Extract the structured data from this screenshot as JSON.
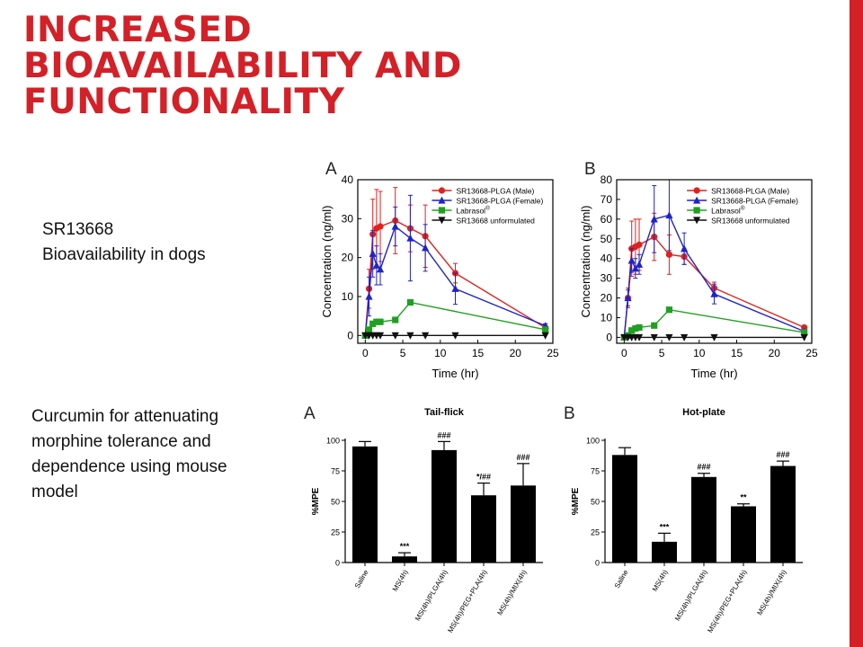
{
  "slide": {
    "title_lines": [
      "INCREASED",
      "BIOAVAILABILITY AND",
      "FUNCTIONALITY"
    ],
    "accent_color": "#d42027",
    "caption_sr": [
      "SR13668",
      "Bioavailability  in dogs"
    ],
    "caption_curcumin": [
      "Curcumin for attenuating",
      "morphine tolerance and",
      "dependence using mouse",
      "model"
    ]
  },
  "chart_data": [
    {
      "type": "line",
      "panel": "A",
      "xlabel": "Time (hr)",
      "ylabel": "Concentration (ng/ml)",
      "xlim": [
        -1,
        25
      ],
      "ylim": [
        -2,
        40
      ],
      "xticks": [
        0,
        5,
        10,
        15,
        20,
        25
      ],
      "yticks": [
        0,
        10,
        20,
        30,
        40
      ],
      "legend_position": "top-right",
      "series": [
        {
          "name": "SR13668-PLGA (Male)",
          "color": "#e0211d",
          "marker": "circle",
          "x": [
            0,
            0.5,
            1,
            1.5,
            2,
            4,
            6,
            8,
            12,
            24
          ],
          "y": [
            0,
            12,
            26,
            27.5,
            28,
            29.5,
            27.5,
            25.5,
            16,
            2
          ],
          "err": [
            0,
            5,
            9,
            10,
            9,
            8.5,
            6,
            8,
            2.5,
            1
          ]
        },
        {
          "name": "SR13668-PLGA (Female)",
          "color": "#1f24c8",
          "marker": "triangle-up",
          "x": [
            0,
            0.5,
            1,
            1.5,
            2,
            4,
            6,
            8,
            12,
            24
          ],
          "y": [
            0,
            10,
            21,
            18,
            17,
            28,
            25,
            22.5,
            12,
            2.5
          ],
          "err": [
            0,
            5,
            6,
            5,
            4,
            5,
            11,
            6,
            4,
            0.5
          ]
        },
        {
          "name": "Labrasol",
          "name_sup": "®",
          "color": "#20a020",
          "marker": "square",
          "x": [
            0,
            0.5,
            1,
            1.5,
            2,
            4,
            6,
            24
          ],
          "y": [
            0,
            1.5,
            3,
            3.5,
            3.5,
            4,
            8.5,
            1.5
          ]
        },
        {
          "name": "SR13668 unformulated",
          "color": "#111111",
          "marker": "triangle-down",
          "x": [
            0,
            0.5,
            1,
            1.5,
            2,
            4,
            6,
            8,
            12,
            24
          ],
          "y": [
            0,
            0,
            0,
            0,
            0,
            0,
            0,
            0,
            0,
            0
          ]
        }
      ]
    },
    {
      "type": "line",
      "panel": "B",
      "xlabel": "Time (hr)",
      "ylabel": "Concentration (ng/ml)",
      "xlim": [
        -1,
        25
      ],
      "ylim": [
        -3,
        80
      ],
      "xticks": [
        0,
        5,
        10,
        15,
        20,
        25
      ],
      "yticks": [
        0,
        10,
        20,
        30,
        40,
        50,
        60,
        70,
        80
      ],
      "legend_position": "top-right",
      "series": [
        {
          "name": "SR13668-PLGA (Male)",
          "color": "#e0211d",
          "marker": "circle",
          "x": [
            0,
            0.5,
            1,
            1.5,
            2,
            4,
            6,
            8,
            12,
            24
          ],
          "y": [
            0,
            20,
            45,
            46,
            47,
            51,
            42,
            41,
            25,
            5
          ],
          "err": [
            0,
            5,
            14,
            14,
            13,
            12,
            10,
            4,
            3,
            1
          ]
        },
        {
          "name": "SR13668-PLGA (Female)",
          "color": "#1f24c8",
          "marker": "triangle-up",
          "x": [
            0,
            0.5,
            1,
            1.5,
            2,
            4,
            6,
            8,
            12,
            24
          ],
          "y": [
            0,
            20,
            39,
            35,
            37,
            60,
            62,
            45,
            22,
            3
          ],
          "err": [
            0,
            4,
            6,
            5,
            5,
            17,
            18,
            8,
            5,
            1
          ]
        },
        {
          "name": "Labrasol",
          "name_sup": "®",
          "color": "#20a020",
          "marker": "square",
          "x": [
            0,
            0.5,
            1,
            1.5,
            2,
            4,
            6,
            24
          ],
          "y": [
            0,
            1,
            3.5,
            4.5,
            5,
            6,
            14,
            2.5
          ]
        },
        {
          "name": "SR13668 unformulated",
          "color": "#111111",
          "marker": "triangle-down",
          "x": [
            0,
            0.5,
            1,
            1.5,
            2,
            4,
            6,
            8,
            12,
            24
          ],
          "y": [
            0,
            0,
            0,
            0,
            0,
            0,
            0,
            0,
            0,
            0
          ]
        }
      ]
    },
    {
      "type": "bar",
      "panel": "A",
      "title": "Tail-flick",
      "ylabel": "%MPE",
      "ylim": [
        0,
        100
      ],
      "yticks": [
        0,
        25,
        50,
        75,
        100
      ],
      "categories": [
        "Saline",
        "MS(4h)",
        "MS(4h)/PLGA(4h)",
        "MS(4h)/PEG+PLA(4h)",
        "MS(4h)/MIX(4h)"
      ],
      "values": [
        95,
        5,
        92,
        55,
        63
      ],
      "err": [
        4,
        3,
        7,
        10,
        18
      ],
      "annotations": [
        "",
        "***",
        "###",
        "*/##",
        "###"
      ]
    },
    {
      "type": "bar",
      "panel": "B",
      "title": "Hot-plate",
      "ylabel": "%MPE",
      "ylim": [
        0,
        100
      ],
      "yticks": [
        0,
        25,
        50,
        75,
        100
      ],
      "categories": [
        "Saline",
        "MS(4h)",
        "MS(4h)/PLGA(4h)",
        "MS(4h)/PEG+PLA(4h)",
        "MS(4h)/MIX(4h)"
      ],
      "values": [
        88,
        17,
        70,
        46,
        79
      ],
      "err": [
        6,
        7,
        3,
        2,
        4
      ],
      "annotations": [
        "",
        "***",
        "###",
        "**",
        "###"
      ]
    }
  ]
}
